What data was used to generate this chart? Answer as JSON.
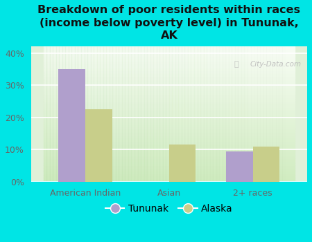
{
  "title": "Breakdown of poor residents within races\n(income below poverty level) in Tununak,\nAK",
  "categories": [
    "American Indian",
    "Asian",
    "2+ races"
  ],
  "tununak_values": [
    35.0,
    0.0,
    9.5
  ],
  "alaska_values": [
    22.5,
    11.5,
    11.0
  ],
  "tununak_color": "#b09fcc",
  "alaska_color": "#c8ce8a",
  "background_color": "#00e5e5",
  "ylim": [
    0,
    42
  ],
  "yticks": [
    0,
    10,
    20,
    30,
    40
  ],
  "ytick_labels": [
    "0%",
    "10%",
    "20%",
    "30%",
    "40%"
  ],
  "bar_width": 0.32,
  "title_fontsize": 11.5,
  "tick_fontsize": 9,
  "legend_fontsize": 10,
  "watermark": "City-Data.com"
}
